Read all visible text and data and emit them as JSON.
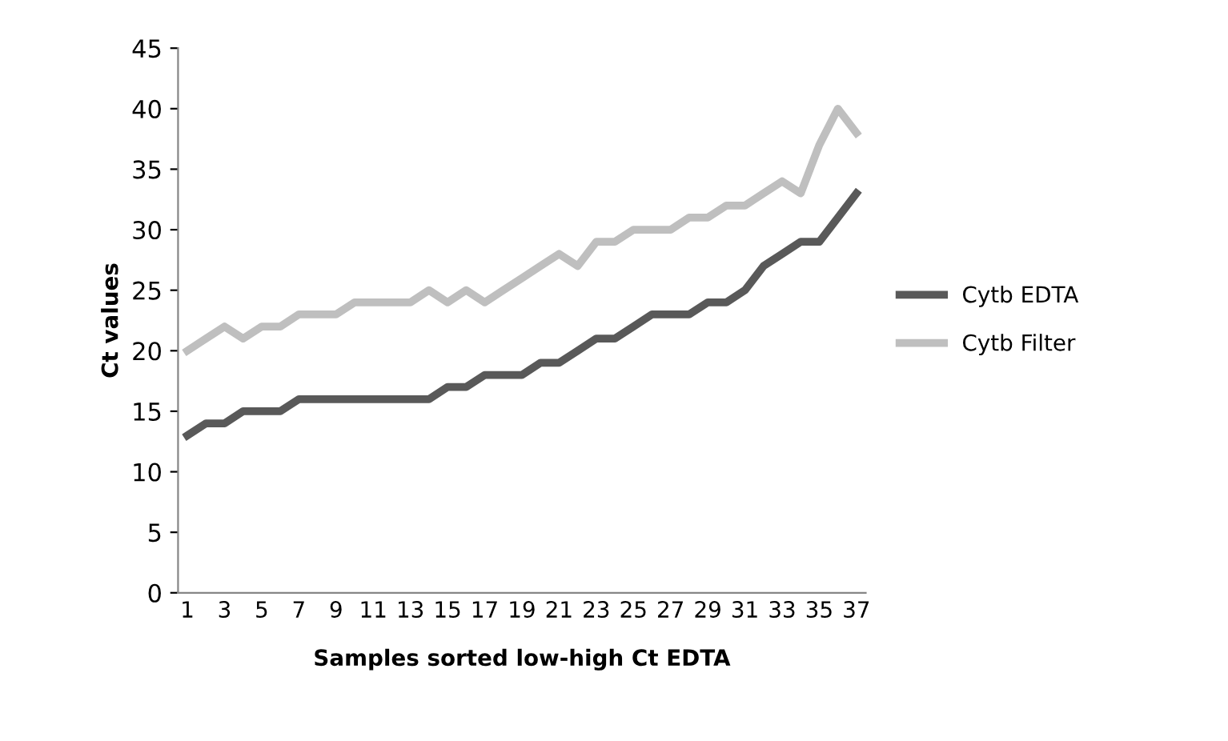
{
  "chart_data": {
    "type": "line",
    "xlabel": "Samples sorted low-high Ct EDTA",
    "ylabel": "Ct values",
    "categories": [
      "1",
      null,
      "3",
      null,
      "5",
      null,
      "7",
      null,
      "9",
      null,
      "11",
      null,
      "13",
      null,
      "15",
      null,
      "17",
      null,
      "19",
      null,
      "21",
      null,
      "23",
      null,
      "25",
      null,
      "27",
      null,
      "29",
      null,
      "31",
      null,
      "33",
      null,
      "35",
      null,
      "37"
    ],
    "series": [
      {
        "name": "Cytb EDTA",
        "color": "#595959",
        "values": [
          13,
          14,
          14,
          15,
          15,
          15,
          16,
          16,
          16,
          16,
          16,
          16,
          16,
          16,
          17,
          17,
          18,
          18,
          18,
          19,
          19,
          20,
          21,
          21,
          22,
          23,
          23,
          23,
          24,
          24,
          25,
          27,
          28,
          29,
          29,
          31,
          33
        ]
      },
      {
        "name": "Cytb Filter",
        "color": "#bfbfbf",
        "values": [
          20,
          21,
          22,
          21,
          22,
          22,
          23,
          23,
          23,
          24,
          24,
          24,
          24,
          25,
          24,
          25,
          24,
          25,
          26,
          27,
          28,
          27,
          29,
          29,
          30,
          30,
          30,
          31,
          31,
          32,
          32,
          33,
          34,
          33,
          37,
          40,
          38
        ]
      }
    ],
    "ylim": [
      0,
      45
    ],
    "yticks": [
      0,
      5,
      10,
      15,
      20,
      25,
      30,
      35,
      40,
      45
    ],
    "grid": false,
    "legend": "right",
    "marker": "none",
    "line_style": "solid"
  }
}
